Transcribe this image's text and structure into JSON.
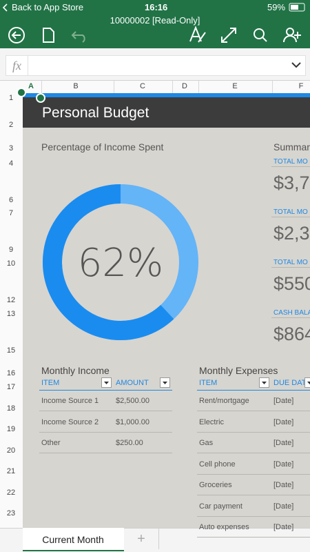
{
  "status_bar": {
    "back": "Back to App Store",
    "time": "16:16",
    "battery": "59%"
  },
  "document_title": "10000002 [Read-Only]",
  "formula_bar": {
    "label": "fx"
  },
  "column_headers": [
    "A",
    "B",
    "C",
    "D",
    "E",
    "F"
  ],
  "row_headers": [
    1,
    2,
    3,
    4,
    6,
    7,
    9,
    10,
    12,
    13,
    15,
    16,
    17,
    18,
    19,
    20,
    21,
    22,
    23
  ],
  "sheet": {
    "title": "Personal Budget",
    "summary": {
      "heading": "Summar",
      "items": [
        {
          "label": "TOTAL MO",
          "value": "$3,7"
        },
        {
          "label": "TOTAL MO",
          "value": "$2,3"
        },
        {
          "label": "TOTAL MO",
          "value": "$550"
        },
        {
          "label": "CASH BALA",
          "value": "$864"
        }
      ]
    },
    "income": {
      "heading": "Monthly Income",
      "columns": [
        "ITEM",
        "AMOUNT"
      ],
      "rows": [
        [
          "Income Source 1",
          "$2,500.00"
        ],
        [
          "Income Source 2",
          "$1,000.00"
        ],
        [
          "Other",
          "$250.00"
        ]
      ]
    },
    "expenses": {
      "heading": "Monthly Expenses",
      "columns": [
        "ITEM",
        "DUE DATE"
      ],
      "rows": [
        [
          "Rent/mortgage",
          "[Date]"
        ],
        [
          "Electric",
          "[Date]"
        ],
        [
          "Gas",
          "[Date]"
        ],
        [
          "Cell phone",
          "[Date]"
        ],
        [
          "Groceries",
          "[Date]"
        ],
        [
          "Car payment",
          "[Date]"
        ],
        [
          "Auto expenses",
          "[Date]"
        ]
      ]
    }
  },
  "chart_data": {
    "type": "donut",
    "title": "Percentage of Income Spent",
    "values": [
      62
    ],
    "value_labels": [
      "62%"
    ],
    "color": "#1a8cf0",
    "track_color": "#64b4f8"
  },
  "tabs": [
    "Current Month"
  ],
  "add_tab": "+"
}
